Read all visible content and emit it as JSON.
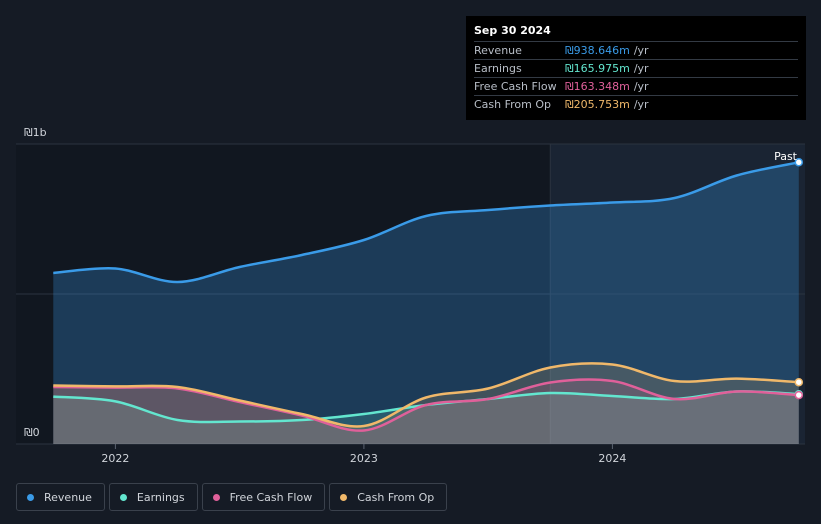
{
  "tooltip": {
    "date": "Sep 30 2024",
    "rows": [
      {
        "label": "Revenue",
        "value": "₪938.646m",
        "unit": "/yr",
        "color": "#3a9be8"
      },
      {
        "label": "Earnings",
        "value": "₪165.975m",
        "unit": "/yr",
        "color": "#63e6cf"
      },
      {
        "label": "Free Cash Flow",
        "value": "₪163.348m",
        "unit": "/yr",
        "color": "#e0609a"
      },
      {
        "label": "Cash From Op",
        "value": "₪205.753m",
        "unit": "/yr",
        "color": "#f0b86a"
      }
    ]
  },
  "legend": [
    {
      "label": "Revenue",
      "color": "#3a9be8"
    },
    {
      "label": "Earnings",
      "color": "#63e6cf"
    },
    {
      "label": "Free Cash Flow",
      "color": "#e0609a"
    },
    {
      "label": "Cash From Op",
      "color": "#f0b86a"
    }
  ],
  "chart_data": {
    "type": "area",
    "title": "",
    "xlabel": "",
    "ylabel": "",
    "x_ticks": [
      {
        "label": "2022",
        "x": 2022.0
      },
      {
        "label": "2023",
        "x": 2023.0
      },
      {
        "label": "2024",
        "x": 2024.0
      }
    ],
    "y_ticks": [
      {
        "label": "₪1b",
        "value": 1000
      },
      {
        "label": "₪0",
        "value": 0
      }
    ],
    "ylim": [
      0,
      1000
    ],
    "xlim": [
      2021.6,
      2024.75
    ],
    "past_start": 2023.75,
    "past_label": "Past",
    "grid": true,
    "legend_position": "bottom-left",
    "series": [
      {
        "name": "Revenue",
        "color": "#3a9be8",
        "x": [
          2021.75,
          2022.0,
          2022.25,
          2022.5,
          2022.75,
          2023.0,
          2023.25,
          2023.5,
          2023.75,
          2024.0,
          2024.25,
          2024.5,
          2024.75
        ],
        "values": [
          570,
          585,
          540,
          590,
          630,
          680,
          760,
          780,
          795,
          805,
          820,
          895,
          939
        ]
      },
      {
        "name": "Earnings",
        "color": "#63e6cf",
        "x": [
          2021.75,
          2022.0,
          2022.25,
          2022.5,
          2022.75,
          2023.0,
          2023.25,
          2023.5,
          2023.75,
          2024.0,
          2024.25,
          2024.5,
          2024.75
        ],
        "values": [
          158,
          142,
          80,
          75,
          80,
          100,
          130,
          150,
          170,
          160,
          150,
          175,
          166
        ]
      },
      {
        "name": "Free Cash Flow",
        "color": "#e0609a",
        "x": [
          2021.75,
          2022.0,
          2022.25,
          2022.5,
          2022.75,
          2023.0,
          2023.25,
          2023.5,
          2023.75,
          2024.0,
          2024.25,
          2024.5,
          2024.75
        ],
        "values": [
          190,
          188,
          185,
          140,
          95,
          45,
          130,
          150,
          205,
          210,
          150,
          175,
          163
        ]
      },
      {
        "name": "Cash From Op",
        "color": "#f0b86a",
        "x": [
          2021.75,
          2022.0,
          2022.25,
          2022.5,
          2022.75,
          2023.0,
          2023.25,
          2023.5,
          2023.75,
          2024.0,
          2024.25,
          2024.5,
          2024.75
        ],
        "values": [
          195,
          192,
          190,
          145,
          100,
          60,
          155,
          185,
          255,
          265,
          210,
          218,
          206
        ]
      }
    ]
  }
}
